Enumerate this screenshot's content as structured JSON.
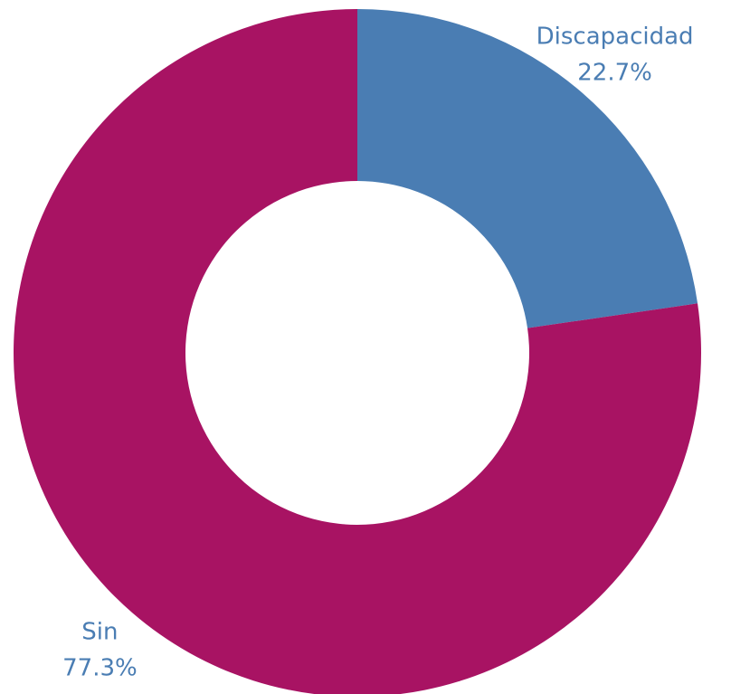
{
  "chart_data": {
    "type": "donut",
    "categories": [
      "Discapacidad",
      "Sin"
    ],
    "values": [
      22.7,
      77.3
    ],
    "value_labels": [
      "22.7%",
      "77.3%"
    ],
    "colors": [
      "#4a7db3",
      "#a81363"
    ],
    "label_color": "#4a7db3"
  }
}
